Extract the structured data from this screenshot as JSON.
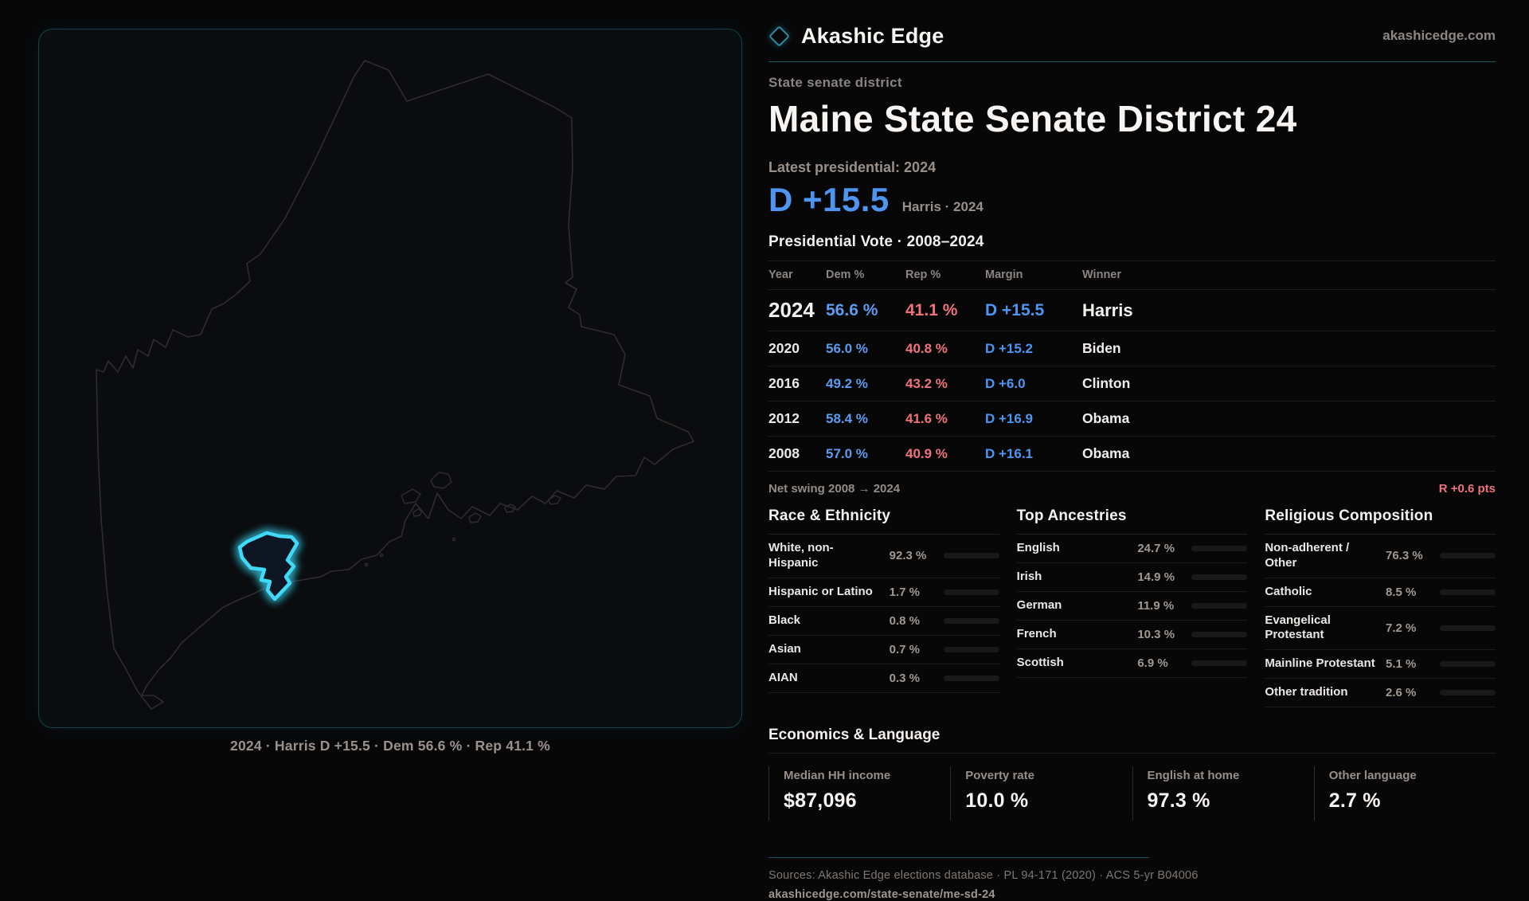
{
  "brand": {
    "name": "Akashic Edge",
    "site": "akashicedge.com"
  },
  "map": {
    "caption": "2024 · Harris D +15.5 · Dem 56.6 % · Rep 41.1 %",
    "highlight_color": "#3fd9f7"
  },
  "header": {
    "kicker": "State senate district",
    "title": "Maine State Senate District 24",
    "latest_label": "Latest presidential: 2024",
    "headline_margin": "D +15.5",
    "headline_note": "Harris · 2024"
  },
  "presidential_vote": {
    "title": "Presidential Vote · 2008–2024",
    "columns": {
      "year": "Year",
      "dem": "Dem %",
      "rep": "Rep %",
      "margin": "Margin",
      "winner": "Winner"
    },
    "rows": [
      {
        "year": "2024",
        "dem": "56.6 %",
        "rep": "41.1 %",
        "margin": "D +15.5",
        "winner": "Harris"
      },
      {
        "year": "2020",
        "dem": "56.0 %",
        "rep": "40.8 %",
        "margin": "D +15.2",
        "winner": "Biden"
      },
      {
        "year": "2016",
        "dem": "49.2 %",
        "rep": "43.2 %",
        "margin": "D +6.0",
        "winner": "Clinton"
      },
      {
        "year": "2012",
        "dem": "58.4 %",
        "rep": "41.6 %",
        "margin": "D +16.9",
        "winner": "Obama"
      },
      {
        "year": "2008",
        "dem": "57.0 %",
        "rep": "40.9 %",
        "margin": "D +16.1",
        "winner": "Obama"
      }
    ]
  },
  "net_swing": {
    "label": "Net swing 2008 → 2024",
    "value": "R +0.6 pts"
  },
  "demographics": {
    "race": {
      "title": "Race & Ethnicity",
      "rows": [
        {
          "label": "White, non-Hispanic",
          "value": "92.3 %",
          "pct": 92.3,
          "color": "#96a4c4"
        },
        {
          "label": "Hispanic or Latino",
          "value": "1.7 %",
          "pct": 1.7,
          "color": "#e8962e"
        },
        {
          "label": "Black",
          "value": "0.8 %",
          "pct": 0.8,
          "color": "#9b8ce0"
        },
        {
          "label": "Asian",
          "value": "0.7 %",
          "pct": 0.7,
          "color": "#3a3a3e"
        },
        {
          "label": "AIAN",
          "value": "0.3 %",
          "pct": 0.3,
          "color": "#3a3a3e"
        }
      ]
    },
    "ancestries": {
      "title": "Top Ancestries",
      "rows": [
        {
          "label": "English",
          "value": "24.7 %",
          "pct": 24.7,
          "color": "#96a4c4"
        },
        {
          "label": "Irish",
          "value": "14.9 %",
          "pct": 14.9,
          "color": "#96a4c4"
        },
        {
          "label": "German",
          "value": "11.9 %",
          "pct": 11.9,
          "color": "#96a4c4"
        },
        {
          "label": "French",
          "value": "10.3 %",
          "pct": 10.3,
          "color": "#96a4c4"
        },
        {
          "label": "Scottish",
          "value": "6.9 %",
          "pct": 6.9,
          "color": "#96a4c4"
        }
      ]
    },
    "religion": {
      "title": "Religious Composition",
      "rows": [
        {
          "label": "Non-adherent / Other",
          "value": "76.3 %",
          "pct": 76.3,
          "color": "#8591a6"
        },
        {
          "label": "Catholic",
          "value": "8.5 %",
          "pct": 8.5,
          "color": "#d9a62e"
        },
        {
          "label": "Evangelical Protestant",
          "value": "7.2 %",
          "pct": 7.2,
          "color": "#e0707a"
        },
        {
          "label": "Mainline Protestant",
          "value": "5.1 %",
          "pct": 5.1,
          "color": "#4d8ce8"
        },
        {
          "label": "Other tradition",
          "value": "2.6 %",
          "pct": 2.6,
          "color": "#b9bec4"
        }
      ]
    }
  },
  "economics": {
    "title": "Economics & Language",
    "stats": [
      {
        "label": "Median HH income",
        "value": "$87,096"
      },
      {
        "label": "Poverty rate",
        "value": "10.0 %"
      },
      {
        "label": "English at home",
        "value": "97.3 %"
      },
      {
        "label": "Other language",
        "value": "2.7 %"
      }
    ]
  },
  "footer": {
    "sources": "Sources: Akashic Edge elections database · PL 94-171 (2020) · ACS 5-yr B04006",
    "permalink": "akashicedge.com/state-senate/me-sd-24"
  },
  "colors": {
    "dem": "#5b9bf0",
    "rep": "#ef727b",
    "accent": "#3fd9f7"
  }
}
